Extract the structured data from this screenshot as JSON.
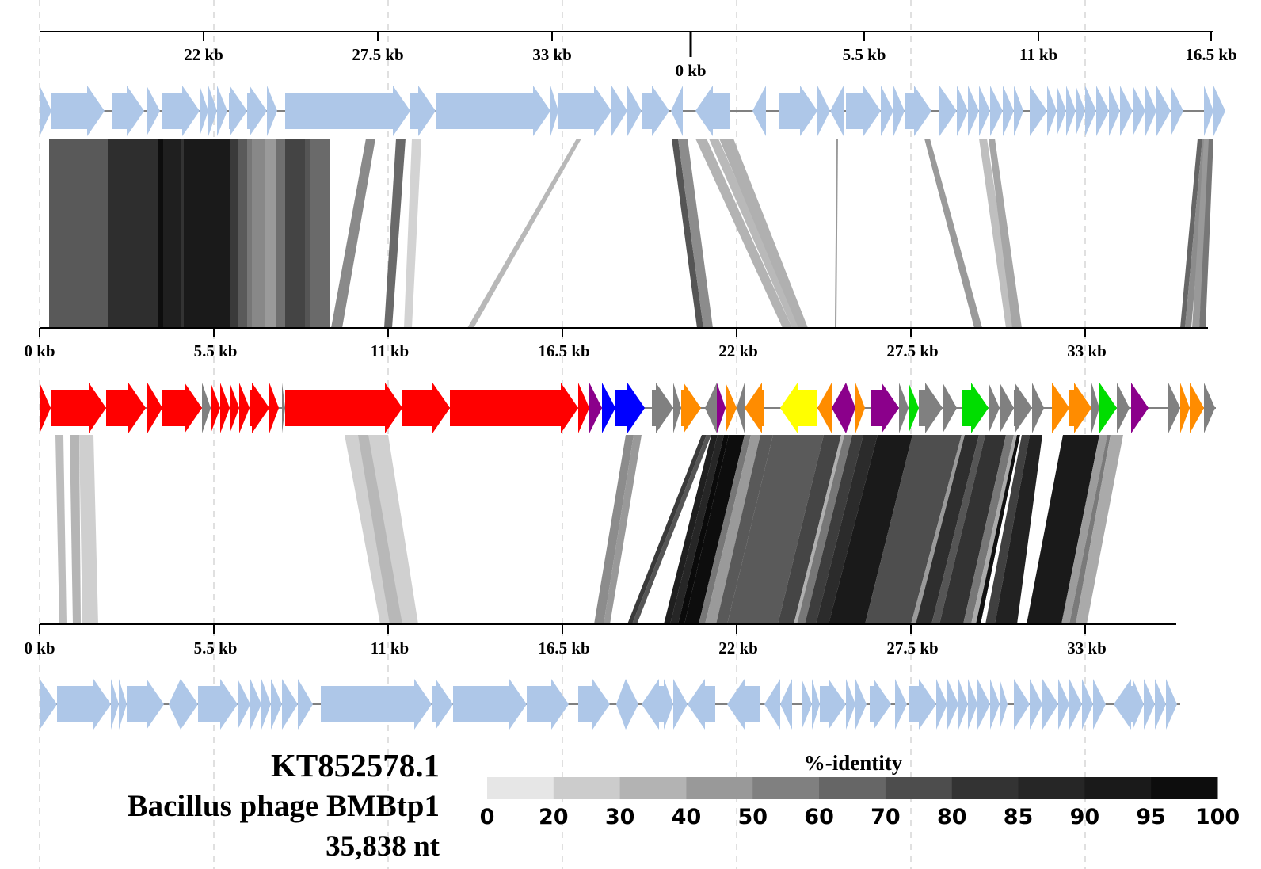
{
  "diagram": {
    "colors": {
      "reference_gene": "#aec7e8",
      "structural": "#ff0000",
      "purple": "#8b008b",
      "blue": "#0000ff",
      "orange": "#ff8c00",
      "gray": "#808080",
      "yellow": "#ffff00",
      "green": "#00dd00",
      "backbone": "#808080",
      "grid": "#cccccc"
    },
    "top_axis": {
      "left_labels": [
        "22 kb",
        "27.5 kb",
        "33 kb"
      ],
      "origin_label": "0 kb",
      "right_labels": [
        "5.5 kb",
        "11 kb",
        "16.5 kb"
      ]
    },
    "mid_axis": {
      "labels": [
        "0 kb",
        "5.5 kb",
        "11 kb",
        "16.5 kb",
        "22 kb",
        "27.5 kb",
        "33 kb"
      ]
    },
    "bottom_axis": {
      "labels": [
        "0 kb",
        "5.5 kb",
        "11 kb",
        "16.5 kb",
        "22 kb",
        "27.5 kb",
        "33 kb"
      ]
    },
    "middle_genome": {
      "accession": "KT852578.1",
      "name": "Bacillus phage BMBtp1",
      "length": "35,838 nt"
    },
    "legend": {
      "title": "%-identity",
      "labels": [
        "0",
        "20",
        "30",
        "40",
        "50",
        "60",
        "70",
        "80",
        "85",
        "90",
        "95",
        "100"
      ],
      "colors": [
        "#e6e6e6",
        "#cccccc",
        "#b3b3b3",
        "#999999",
        "#808080",
        "#666666",
        "#4d4d4d",
        "#333333",
        "#262626",
        "#1a1a1a",
        "#0d0d0d"
      ]
    }
  }
}
